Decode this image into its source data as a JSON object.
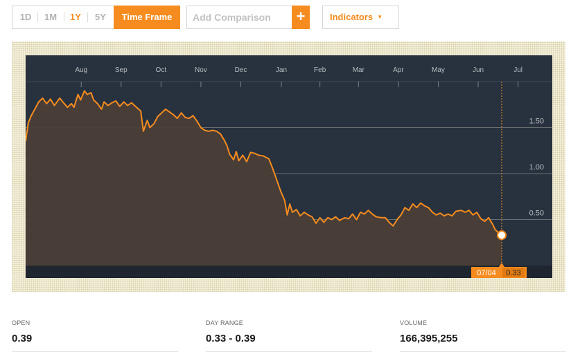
{
  "toolbar": {
    "timeframes": [
      "1D",
      "1M",
      "1Y",
      "5Y"
    ],
    "active_timeframe": "1Y",
    "timeframe_button": "Time Frame",
    "compare_placeholder": "Add Comparison",
    "add_button": "+",
    "indicators_label": "Indicators",
    "indicators_caret": "▼"
  },
  "colors": {
    "accent": "#f68c1f",
    "chart_bg": "#28323f",
    "area_fill": "#4a3e37",
    "grid": "#6b6f72",
    "axis_text": "#b8bcc0"
  },
  "chart_data": {
    "type": "area",
    "x_ticks": [
      "Aug",
      "Sep",
      "Oct",
      "Nov",
      "Dec",
      "Jan",
      "Feb",
      "Mar",
      "Apr",
      "May",
      "Jun",
      "Jul"
    ],
    "y_ticks": [
      "1.50",
      "1.00",
      "0.50"
    ],
    "y_tick_values": [
      1.5,
      1.0,
      0.5
    ],
    "ylim": [
      0,
      2.0
    ],
    "grid": true,
    "x_start": "2012-07-05",
    "x_end": "2013-07-04",
    "series": [
      {
        "points": [
          [
            "2012-07-05",
            1.35
          ],
          [
            "2012-07-07",
            1.55
          ],
          [
            "2012-07-09",
            1.62
          ],
          [
            "2012-07-12",
            1.7
          ],
          [
            "2012-07-15",
            1.78
          ],
          [
            "2012-07-18",
            1.82
          ],
          [
            "2012-07-21",
            1.76
          ],
          [
            "2012-07-24",
            1.81
          ],
          [
            "2012-07-27",
            1.74
          ],
          [
            "2012-07-31",
            1.82
          ],
          [
            "2012-08-03",
            1.77
          ],
          [
            "2012-08-06",
            1.72
          ],
          [
            "2012-08-09",
            1.76
          ],
          [
            "2012-08-11",
            1.72
          ],
          [
            "2012-08-14",
            1.86
          ],
          [
            "2012-08-16",
            1.8
          ],
          [
            "2012-08-19",
            1.9
          ],
          [
            "2012-08-21",
            1.86
          ],
          [
            "2012-08-24",
            1.88
          ],
          [
            "2012-08-26",
            1.8
          ],
          [
            "2012-08-29",
            1.76
          ],
          [
            "2012-09-01",
            1.7
          ],
          [
            "2012-09-03",
            1.78
          ],
          [
            "2012-09-06",
            1.74
          ],
          [
            "2012-09-09",
            1.77
          ],
          [
            "2012-09-12",
            1.79
          ],
          [
            "2012-09-15",
            1.73
          ],
          [
            "2012-09-18",
            1.78
          ],
          [
            "2012-09-21",
            1.74
          ],
          [
            "2012-09-24",
            1.77
          ],
          [
            "2012-09-27",
            1.73
          ],
          [
            "2012-10-01",
            1.68
          ],
          [
            "2012-10-03",
            1.46
          ],
          [
            "2012-10-06",
            1.58
          ],
          [
            "2012-10-08",
            1.5
          ],
          [
            "2012-10-11",
            1.54
          ],
          [
            "2012-10-14",
            1.62
          ],
          [
            "2012-10-17",
            1.66
          ],
          [
            "2012-10-20",
            1.7
          ],
          [
            "2012-10-23",
            1.67
          ],
          [
            "2012-10-26",
            1.64
          ],
          [
            "2012-10-29",
            1.6
          ],
          [
            "2012-11-01",
            1.66
          ],
          [
            "2012-11-04",
            1.61
          ],
          [
            "2012-11-07",
            1.6
          ],
          [
            "2012-11-10",
            1.63
          ],
          [
            "2012-11-13",
            1.57
          ],
          [
            "2012-11-16",
            1.5
          ],
          [
            "2012-11-19",
            1.47
          ],
          [
            "2012-11-22",
            1.46
          ],
          [
            "2012-11-25",
            1.47
          ],
          [
            "2012-11-28",
            1.46
          ],
          [
            "2012-12-01",
            1.43
          ],
          [
            "2012-12-04",
            1.36
          ],
          [
            "2012-12-06",
            1.3
          ],
          [
            "2012-12-08",
            1.21
          ],
          [
            "2012-12-11",
            1.15
          ],
          [
            "2012-12-13",
            1.24
          ],
          [
            "2012-12-15",
            1.14
          ],
          [
            "2012-12-18",
            1.2
          ],
          [
            "2012-12-21",
            1.13
          ],
          [
            "2012-12-24",
            1.23
          ],
          [
            "2012-12-27",
            1.22
          ],
          [
            "2012-12-30",
            1.2
          ],
          [
            "2013-01-03",
            1.19
          ],
          [
            "2013-01-07",
            1.16
          ],
          [
            "2013-01-10",
            1.05
          ],
          [
            "2013-01-13",
            0.93
          ],
          [
            "2013-01-16",
            0.81
          ],
          [
            "2013-01-19",
            0.71
          ],
          [
            "2013-01-21",
            0.55
          ],
          [
            "2013-01-23",
            0.67
          ],
          [
            "2013-01-25",
            0.58
          ],
          [
            "2013-01-28",
            0.61
          ],
          [
            "2013-01-31",
            0.54
          ],
          [
            "2013-02-03",
            0.58
          ],
          [
            "2013-02-06",
            0.55
          ],
          [
            "2013-02-09",
            0.53
          ],
          [
            "2013-02-12",
            0.46
          ],
          [
            "2013-02-15",
            0.52
          ],
          [
            "2013-02-18",
            0.47
          ],
          [
            "2013-02-21",
            0.52
          ],
          [
            "2013-02-24",
            0.5
          ],
          [
            "2013-02-27",
            0.53
          ],
          [
            "2013-03-02",
            0.49
          ],
          [
            "2013-03-06",
            0.52
          ],
          [
            "2013-03-09",
            0.51
          ],
          [
            "2013-03-12",
            0.56
          ],
          [
            "2013-03-15",
            0.5
          ],
          [
            "2013-03-18",
            0.58
          ],
          [
            "2013-03-21",
            0.56
          ],
          [
            "2013-03-24",
            0.6
          ],
          [
            "2013-03-27",
            0.56
          ],
          [
            "2013-03-30",
            0.53
          ],
          [
            "2013-04-03",
            0.52
          ],
          [
            "2013-04-06",
            0.52
          ],
          [
            "2013-04-09",
            0.47
          ],
          [
            "2013-04-12",
            0.43
          ],
          [
            "2013-04-15",
            0.5
          ],
          [
            "2013-04-18",
            0.55
          ],
          [
            "2013-04-21",
            0.63
          ],
          [
            "2013-04-24",
            0.6
          ],
          [
            "2013-04-27",
            0.67
          ],
          [
            "2013-04-30",
            0.63
          ],
          [
            "2013-05-03",
            0.68
          ],
          [
            "2013-05-06",
            0.65
          ],
          [
            "2013-05-09",
            0.63
          ],
          [
            "2013-05-12",
            0.58
          ],
          [
            "2013-05-15",
            0.55
          ],
          [
            "2013-05-18",
            0.57
          ],
          [
            "2013-05-21",
            0.54
          ],
          [
            "2013-05-24",
            0.56
          ],
          [
            "2013-05-27",
            0.54
          ],
          [
            "2013-05-30",
            0.59
          ],
          [
            "2013-06-03",
            0.6
          ],
          [
            "2013-06-06",
            0.58
          ],
          [
            "2013-06-09",
            0.6
          ],
          [
            "2013-06-12",
            0.55
          ],
          [
            "2013-06-15",
            0.58
          ],
          [
            "2013-06-18",
            0.51
          ],
          [
            "2013-06-21",
            0.48
          ],
          [
            "2013-06-24",
            0.52
          ],
          [
            "2013-06-27",
            0.45
          ],
          [
            "2013-06-29",
            0.39
          ],
          [
            "2013-07-02",
            0.35
          ],
          [
            "2013-07-04",
            0.33
          ]
        ]
      }
    ],
    "marker": {
      "date_label": "07/04",
      "value_label": "0.33"
    }
  },
  "stats": [
    {
      "label": "OPEN",
      "value": "0.39"
    },
    {
      "label": "DAY RANGE",
      "value": "0.33 - 0.39"
    },
    {
      "label": "VOLUME",
      "value": "166,395,255"
    }
  ]
}
